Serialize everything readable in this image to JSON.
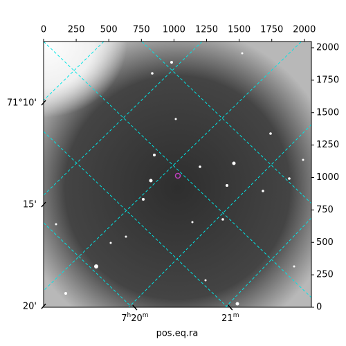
{
  "chart_data": {
    "type": "image",
    "xlabel": "pos.eq.ra",
    "xlim": [
      0,
      2054
    ],
    "xticks": [
      0,
      250,
      500,
      750,
      1000,
      1250,
      1500,
      1750,
      2000
    ],
    "ylim": [
      0,
      2048
    ],
    "yticks": [
      0,
      250,
      500,
      750,
      1000,
      1250,
      1500,
      1750,
      2000
    ],
    "ra_ticks": [
      {
        "value": 700,
        "label": "7h20m"
      },
      {
        "value": 1432,
        "label": "21m"
      }
    ],
    "dec_ticks": [
      {
        "value": 1573,
        "label": "71°10'"
      },
      {
        "value": 789,
        "label": "15'"
      },
      {
        "value": 5,
        "label": "20'"
      }
    ],
    "grid_color": "#00e5e5",
    "marker_color": "#c040c0"
  }
}
